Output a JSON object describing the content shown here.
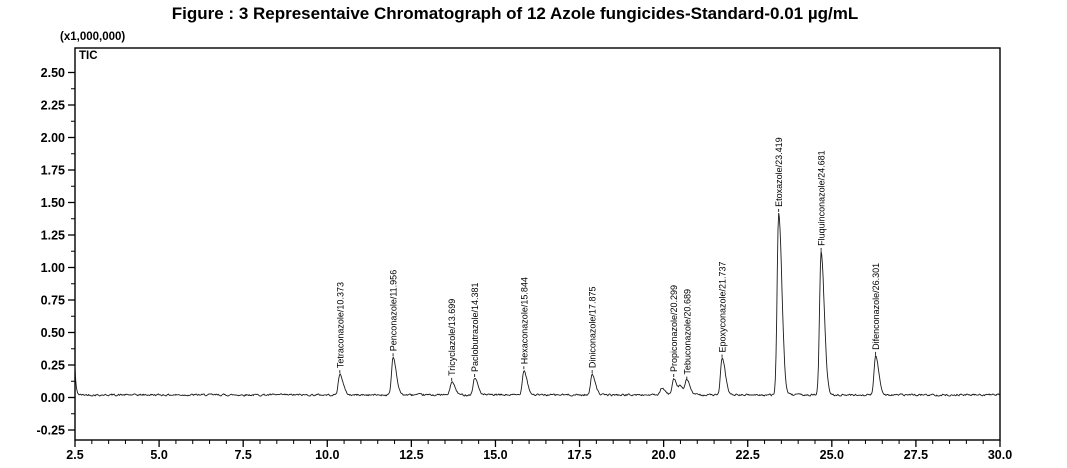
{
  "title": "Figure : 3 Representaive Chromatograph of 12 Azole fungicides-Standard-0.01 µg/mL",
  "chart_data": {
    "type": "line",
    "trace_label": "TIC",
    "y_multiplier_label": "(x1,000,000)",
    "xlim": [
      2.5,
      30.0
    ],
    "ylim": [
      -0.25,
      2.5
    ],
    "x_tick_values": [
      2.5,
      5.0,
      7.5,
      10.0,
      12.5,
      15.0,
      17.5,
      20.0,
      22.5,
      25.0,
      27.5,
      30.0
    ],
    "x_tick_labels": [
      "2.5",
      "5.0",
      "7.5",
      "10.0",
      "12.5",
      "15.0",
      "17.5",
      "20.0",
      "22.5",
      "25.0",
      "27.5",
      "30.0"
    ],
    "y_tick_values": [
      2.5,
      2.25,
      2.0,
      1.75,
      1.5,
      1.25,
      1.0,
      0.75,
      0.5,
      0.25,
      0.0,
      -0.25
    ],
    "y_tick_labels": [
      "2.50",
      "2.25",
      "2.00",
      "1.75",
      "1.50",
      "1.25",
      "1.00",
      "0.75",
      "0.50",
      "0.25",
      "0.00",
      "-0.25"
    ],
    "x_minor_step": 0.5,
    "y_minor_step": 0.125,
    "grid": false,
    "baseline": 0.02,
    "noise_amplitude": 0.006,
    "initial_transient": {
      "rt": 2.5,
      "height": 0.22
    },
    "peaks": [
      {
        "name": "Tetraconazole",
        "rt": 10.373,
        "height": 0.16
      },
      {
        "name": "Penconazole",
        "rt": 11.956,
        "height": 0.29
      },
      {
        "name": "Tricyclazole",
        "rt": 13.699,
        "height": 0.1
      },
      {
        "name": "Paclobutrazole",
        "rt": 14.381,
        "height": 0.13
      },
      {
        "name": "Hexaconazole",
        "rt": 15.844,
        "height": 0.19
      },
      {
        "name": "Diniconazole",
        "rt": 17.875,
        "height": 0.16
      },
      {
        "name": "Propiconazole",
        "rt": 20.299,
        "height": 0.13
      },
      {
        "name": "Tebuconazole",
        "rt": 20.689,
        "height": 0.11
      },
      {
        "name": "Epoxyconazole",
        "rt": 21.737,
        "height": 0.28
      },
      {
        "name": "Etoxazole",
        "rt": 23.419,
        "height": 1.4
      },
      {
        "name": "Fluquinconazole",
        "rt": 24.681,
        "height": 1.1
      },
      {
        "name": "Difenconazole",
        "rt": 26.301,
        "height": 0.3
      }
    ],
    "unlabeled_bumps": [
      {
        "rt": 19.95,
        "height": 0.05
      },
      {
        "rt": 20.5,
        "height": 0.06
      }
    ],
    "colors": {
      "trace": "#1a1a1a",
      "frame": "#000000",
      "text": "#000000",
      "background": "#ffffff"
    }
  }
}
